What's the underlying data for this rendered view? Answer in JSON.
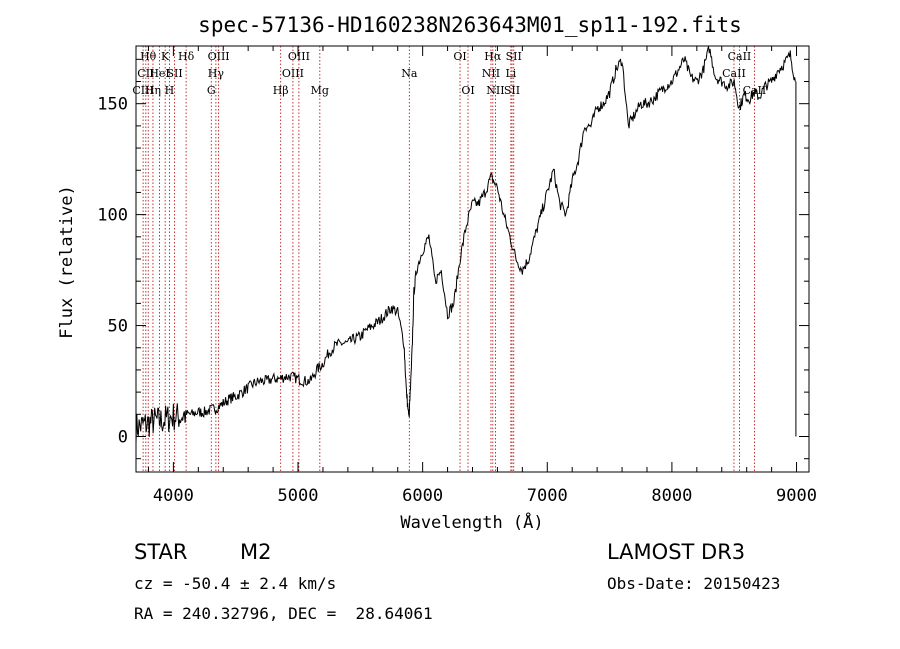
{
  "chart_data": {
    "type": "line",
    "title": "spec-57136-HD160238N263643M01_sp11-192.fits",
    "xlabel": "Wavelength (Å)",
    "ylabel": "Flux (relative)",
    "xlim": [
      3700,
      9100
    ],
    "ylim": [
      -16,
      176
    ],
    "xticks": [
      4000,
      5000,
      6000,
      7000,
      8000,
      9000
    ],
    "yticks": [
      0,
      50,
      100,
      150
    ],
    "series": [
      {
        "name": "spectrum",
        "x": [
          3700,
          3750,
          3800,
          3850,
          3900,
          3950,
          4000,
          4050,
          4100,
          4150,
          4200,
          4250,
          4300,
          4350,
          4400,
          4450,
          4500,
          4550,
          4600,
          4650,
          4700,
          4750,
          4800,
          4850,
          4900,
          4950,
          5000,
          5050,
          5100,
          5150,
          5200,
          5250,
          5300,
          5350,
          5400,
          5450,
          5500,
          5550,
          5600,
          5650,
          5700,
          5750,
          5800,
          5850,
          5870,
          5890,
          5910,
          5930,
          5950,
          6000,
          6050,
          6100,
          6150,
          6200,
          6250,
          6300,
          6350,
          6400,
          6450,
          6500,
          6550,
          6600,
          6650,
          6700,
          6750,
          6800,
          6850,
          6900,
          6950,
          7000,
          7050,
          7100,
          7150,
          7200,
          7250,
          7300,
          7350,
          7400,
          7450,
          7500,
          7550,
          7600,
          7650,
          7700,
          7750,
          7800,
          7850,
          7900,
          7950,
          8000,
          8050,
          8100,
          8150,
          8200,
          8250,
          8300,
          8350,
          8400,
          8450,
          8500,
          8540,
          8580,
          8620,
          8660,
          8700,
          8750,
          8800,
          8850,
          8900,
          8950,
          8990
        ],
        "y": [
          4,
          5,
          6,
          7,
          7,
          8,
          9,
          9,
          10,
          10,
          11,
          11,
          12,
          13,
          15,
          17,
          18,
          20,
          22,
          24,
          25,
          25,
          26,
          26,
          27,
          27,
          26,
          25,
          25,
          30,
          33,
          38,
          41,
          42,
          42,
          44,
          45,
          48,
          50,
          52,
          55,
          58,
          56,
          42,
          20,
          8,
          30,
          65,
          75,
          84,
          90,
          70,
          75,
          55,
          60,
          80,
          95,
          105,
          105,
          110,
          117,
          112,
          100,
          90,
          80,
          75,
          80,
          90,
          100,
          110,
          120,
          105,
          100,
          115,
          125,
          140,
          140,
          148,
          150,
          155,
          165,
          170,
          140,
          145,
          150,
          150,
          152,
          155,
          158,
          160,
          165,
          170,
          162,
          160,
          165,
          175,
          162,
          160,
          158,
          160,
          148,
          154,
          152,
          155,
          153,
          158,
          160,
          165,
          168,
          172,
          160
        ]
      }
    ],
    "lines": [
      {
        "name": "Hθ",
        "x": 3798,
        "row": 1
      },
      {
        "name": "CII",
        "x": 3779,
        "row": 2
      },
      {
        "name": "CIII",
        "x": 3757,
        "row": 3
      },
      {
        "name": "Hη",
        "x": 3836,
        "row": 3
      },
      {
        "name": "HeI",
        "x": 3889,
        "row": 2
      },
      {
        "name": "K",
        "x": 3934,
        "row": 1
      },
      {
        "name": "H",
        "x": 3968,
        "row": 3
      },
      {
        "name": "SII",
        "x": 4010,
        "row": 2
      },
      {
        "name": "Hδ",
        "x": 4102,
        "row": 1
      },
      {
        "name": "G",
        "x": 4304,
        "row": 3
      },
      {
        "name": "Hγ",
        "x": 4341,
        "row": 2
      },
      {
        "name": "OIII",
        "x": 4363,
        "row": 1
      },
      {
        "name": "Hβ",
        "x": 4861,
        "row": 3
      },
      {
        "name": "OIII",
        "x": 4959,
        "row": 2
      },
      {
        "name": "OIII",
        "x": 5007,
        "row": 1
      },
      {
        "name": "Mg",
        "x": 5175,
        "row": 3
      },
      {
        "name": "Na",
        "x": 5893,
        "row": 2
      },
      {
        "name": "OI",
        "x": 6300,
        "row": 1
      },
      {
        "name": "OI",
        "x": 6364,
        "row": 3
      },
      {
        "name": "NII",
        "x": 6548,
        "row": 2
      },
      {
        "name": "Hα",
        "x": 6563,
        "row": 1
      },
      {
        "name": "NII",
        "x": 6584,
        "row": 3
      },
      {
        "name": "SII",
        "x": 6717,
        "row": 3
      },
      {
        "name": "SII",
        "x": 6731,
        "row": 1
      },
      {
        "name": "Li",
        "x": 6708,
        "row": 2
      },
      {
        "name": "CaII",
        "x": 8498,
        "row": 2
      },
      {
        "name": "CaII",
        "x": 8542,
        "row": 1
      },
      {
        "name": "CaII",
        "x": 8662,
        "row": 3
      }
    ]
  },
  "info": {
    "class": "STAR",
    "subclass": "M2",
    "survey": "LAMOST DR3",
    "cz": "cz = -50.4 ± 2.4 km/s",
    "obs_date": "Obs-Date: 20150423",
    "radec": "RA = 240.32796, DEC =  28.64061"
  }
}
